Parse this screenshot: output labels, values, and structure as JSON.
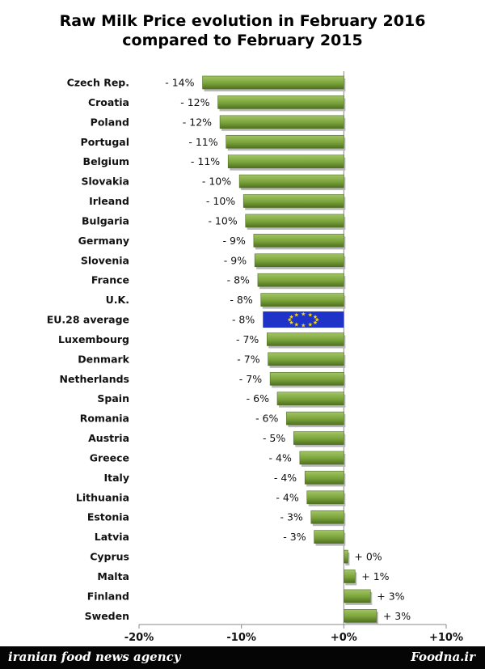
{
  "chart_data": {
    "type": "bar",
    "orientation": "horizontal",
    "title": [
      "Raw Milk Price evolution in February 2016",
      "compared to February 2015"
    ],
    "categories": [
      "Czech Rep.",
      "Croatia",
      "Poland",
      "Portugal",
      "Belgium",
      "Slovakia",
      "Irleand",
      "Bulgaria",
      "Germany",
      "Slovenia",
      "France",
      "U.K.",
      "EU.28 average",
      "Luxembourg",
      "Denmark",
      "Netherlands",
      "Spain",
      "Romania",
      "Austria",
      "Greece",
      "Italy",
      "Lithuania",
      "Estonia",
      "Latvia",
      "Cyprus",
      "Malta",
      "Finland",
      "Sweden"
    ],
    "values": [
      -13.8,
      -12.3,
      -12.1,
      -11.5,
      -11.3,
      -10.2,
      -9.8,
      -9.6,
      -8.8,
      -8.7,
      -8.4,
      -8.1,
      -7.9,
      -7.5,
      -7.4,
      -7.2,
      -6.5,
      -5.6,
      -4.9,
      -4.3,
      -3.8,
      -3.6,
      -3.2,
      -2.9,
      0.4,
      1.1,
      2.6,
      3.2
    ],
    "value_labels": [
      "- 14%",
      "- 12%",
      "- 12%",
      "- 11%",
      "- 11%",
      "- 10%",
      "- 10%",
      "- 10%",
      "- 9%",
      "- 9%",
      "- 8%",
      "- 8%",
      "- 8%",
      "- 7%",
      "- 7%",
      "- 7%",
      "- 6%",
      "- 6%",
      "- 5%",
      "- 4%",
      "- 4%",
      "- 4%",
      "- 3%",
      "- 3%",
      "+ 0%",
      "+ 1%",
      "+ 3%",
      "+ 3%"
    ],
    "highlight_category": "EU.28 average",
    "xlim": [
      -20,
      10
    ],
    "xticks": [
      -20,
      -10,
      0,
      10
    ],
    "xtick_labels": [
      "-20%",
      "-10%",
      "+0%",
      "+10%"
    ],
    "grid": false,
    "colors": {
      "bar": "#7aa33a",
      "bar_light": "#a3c566",
      "bar_dark": "#4f7021",
      "eu_bar": "#1f33c8",
      "eu_star": "#ffdd00"
    }
  },
  "footer": {
    "left_text": "iranian food news agency",
    "right_text": "Foodna.ir"
  }
}
